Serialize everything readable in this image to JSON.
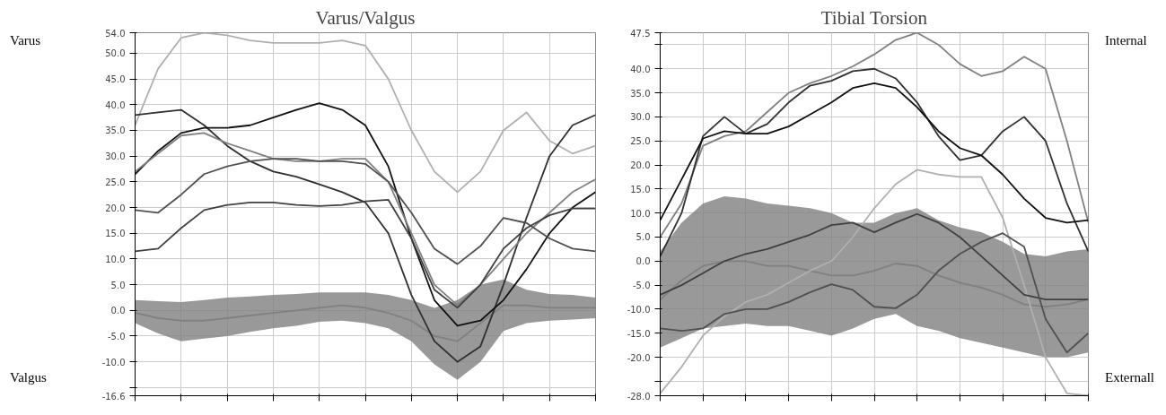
{
  "chart_data": [
    {
      "type": "line",
      "title": "Varus/Valgus",
      "annotations": [
        "Varus",
        "Valgus"
      ],
      "categories": [
        null,
        null,
        null,
        null,
        null,
        null,
        null,
        null,
        null,
        null,
        null,
        null,
        null,
        null,
        null,
        null,
        null,
        null,
        null,
        null,
        null
      ],
      "ylim": [
        -16.6,
        54
      ],
      "yticks": [
        {
          "value": -16.6,
          "label": "-16.6"
        },
        {
          "value": -15,
          "label": null
        },
        {
          "value": -10,
          "label": "-10.0"
        },
        {
          "value": -5,
          "label": "-5.0"
        },
        {
          "value": 0,
          "label": "0.0"
        },
        {
          "value": 5,
          "label": "5.0"
        },
        {
          "value": 10,
          "label": "10.0"
        },
        {
          "value": 15,
          "label": "15.0"
        },
        {
          "value": 20,
          "label": "20.0"
        },
        {
          "value": 25,
          "label": "25.0"
        },
        {
          "value": 30,
          "label": "30.0"
        },
        {
          "value": 35,
          "label": "35.0"
        },
        {
          "value": 40,
          "label": "40.0"
        },
        {
          "value": 45,
          "label": "45.0"
        },
        {
          "value": 50,
          "label": "50.0"
        },
        {
          "value": 54,
          "label": "54.0"
        }
      ],
      "grid": true,
      "tick_labels": "y",
      "line_style": "solid",
      "series": [
        {
          "color": "#808080",
          "values": [
            -0.5,
            -1.5,
            -2,
            -2,
            -1.5,
            -1,
            -0.5,
            0,
            0.5,
            1,
            0.5,
            -0.5,
            -2,
            -5,
            -6,
            -2.5,
            1,
            1,
            0.5,
            0.5,
            0.5
          ],
          "upper": [
            2,
            1.8,
            1.6,
            2,
            2.5,
            2.7,
            3,
            3.2,
            3.5,
            3.5,
            3.5,
            3,
            2,
            0.5,
            2,
            5,
            6,
            4,
            3.2,
            3,
            2.5
          ],
          "lower": [
            -2.5,
            -4.5,
            -6,
            -5.5,
            -5,
            -4.2,
            -3.5,
            -3,
            -2.2,
            -2,
            -2.5,
            -3.5,
            -6,
            -10.5,
            -13.5,
            -10,
            -4,
            -2.5,
            -2,
            -1.8,
            -1.5
          ]
        },
        {
          "color": "#b0b0b0",
          "values": [
            36,
            47,
            53,
            54,
            53.5,
            52.5,
            52,
            52,
            52,
            52.5,
            51.5,
            45,
            35,
            27,
            23,
            27,
            35,
            38.5,
            33,
            30.5,
            32
          ]
        },
        {
          "color": "#303030",
          "values": [
            38,
            38.5,
            39,
            36,
            32,
            29,
            27,
            26,
            24.5,
            23,
            21,
            15,
            3,
            -6,
            -10,
            -7,
            5,
            18,
            30,
            36,
            38
          ]
        },
        {
          "color": "#111111",
          "values": [
            26.5,
            31,
            34.5,
            35.5,
            35.5,
            36,
            37.5,
            39,
            40.3,
            39,
            36,
            28,
            14,
            2,
            -3,
            -2,
            2,
            8,
            15,
            20,
            23
          ]
        },
        {
          "color": "#808080",
          "values": [
            27,
            30.5,
            34,
            34.5,
            32.5,
            31,
            29.5,
            29,
            29,
            29.5,
            29.5,
            25,
            15,
            5,
            1,
            5,
            10,
            15,
            19,
            23,
            25.5
          ]
        },
        {
          "color": "#505050",
          "values": [
            19.5,
            19,
            22.5,
            26.5,
            28,
            29,
            29.5,
            29.5,
            29,
            29,
            28.5,
            25,
            19,
            12,
            9,
            12.5,
            18,
            17,
            14,
            12,
            11.5
          ]
        },
        {
          "color": "#404040",
          "values": [
            11.5,
            12,
            16,
            19.5,
            20.5,
            21,
            21,
            20.5,
            20.3,
            20.5,
            21.2,
            21.5,
            14,
            4,
            0.5,
            5,
            12,
            16,
            18.5,
            19.8,
            19.8
          ]
        }
      ]
    },
    {
      "type": "line",
      "title": "Tibial Torsion",
      "annotations": [
        "Internal",
        "Externall"
      ],
      "categories": [
        null,
        null,
        null,
        null,
        null,
        null,
        null,
        null,
        null,
        null,
        null,
        null,
        null,
        null,
        null,
        null,
        null,
        null,
        null,
        null,
        null
      ],
      "ylim": [
        -28,
        47.5
      ],
      "yticks": [
        {
          "value": -28,
          "label": "-28.0"
        },
        {
          "value": -25,
          "label": null
        },
        {
          "value": -20,
          "label": "-20.0"
        },
        {
          "value": -15,
          "label": "-15.0"
        },
        {
          "value": -10,
          "label": "-10.0"
        },
        {
          "value": -5,
          "label": "-5.0"
        },
        {
          "value": 0,
          "label": "0.0"
        },
        {
          "value": 5,
          "label": "5.0"
        },
        {
          "value": 10,
          "label": "10.0"
        },
        {
          "value": 15,
          "label": "15.0"
        },
        {
          "value": 20,
          "label": "20.0"
        },
        {
          "value": 25,
          "label": "25.0"
        },
        {
          "value": 30,
          "label": "30.0"
        },
        {
          "value": 35,
          "label": "35.0"
        },
        {
          "value": 40,
          "label": "40.0"
        },
        {
          "value": 45,
          "label": null
        },
        {
          "value": 47.5,
          "label": "47.5"
        }
      ],
      "grid": true,
      "tick_labels": "y",
      "line_style": "solid",
      "series": [
        {
          "color": "#808080",
          "values": [
            -8,
            -4,
            -1,
            0,
            0,
            -1,
            -1,
            -2,
            -3,
            -3,
            -2,
            -0.5,
            -1,
            -3,
            -4.5,
            -5.5,
            -7,
            -9,
            -9.5,
            -9,
            -8
          ],
          "upper": [
            2,
            8,
            12,
            13.5,
            13,
            12,
            11.5,
            11,
            10,
            8,
            8,
            10,
            11,
            8.5,
            7,
            6,
            4,
            1.5,
            1,
            2,
            2.5
          ],
          "lower": [
            -18,
            -16,
            -14,
            -13.5,
            -13,
            -13.5,
            -13.5,
            -14.5,
            -15.5,
            -14,
            -12,
            -11,
            -13.5,
            -14.5,
            -16,
            -17,
            -18,
            -19,
            -20,
            -20,
            -19
          ]
        },
        {
          "color": "#808080",
          "values": [
            5,
            12,
            24,
            26,
            27,
            31,
            35,
            37,
            38.5,
            40.5,
            43,
            46,
            47.5,
            45,
            41,
            38.5,
            39.5,
            42.5,
            40,
            25,
            8
          ]
        },
        {
          "color": "#303030",
          "values": [
            1,
            10,
            26,
            30,
            26.5,
            28.5,
            33,
            36.5,
            37.5,
            39.5,
            40,
            38,
            33,
            26,
            21,
            22,
            27,
            30,
            25,
            12,
            2
          ]
        },
        {
          "color": "#111111",
          "values": [
            8.5,
            17,
            25.5,
            27,
            26.5,
            26.5,
            28,
            30.5,
            33,
            36,
            37,
            36,
            32,
            27,
            23.5,
            22,
            18,
            13,
            9,
            8,
            8.5
          ]
        },
        {
          "color": "#b0b0b0",
          "values": [
            -27.5,
            -22,
            -15.5,
            -11.5,
            -8.5,
            -7,
            -4.5,
            -2,
            0,
            5,
            11,
            16,
            19,
            18,
            17.5,
            17.5,
            9,
            -5,
            -20,
            -27.5,
            -28
          ]
        },
        {
          "color": "#404040",
          "values": [
            -7,
            -5,
            -2.5,
            0,
            1.5,
            2.5,
            4,
            5.5,
            7.5,
            8,
            6,
            8,
            9.8,
            8,
            5,
            1,
            -3,
            -7,
            -8,
            -8,
            -8
          ]
        },
        {
          "color": "#505050",
          "values": [
            -14,
            -14.5,
            -14,
            -11,
            -10,
            -10,
            -8.5,
            -6.5,
            -4.8,
            -6,
            -9.5,
            -9.8,
            -7,
            -2,
            1.5,
            4,
            5.8,
            3,
            -12,
            -19,
            -15
          ]
        }
      ]
    }
  ]
}
